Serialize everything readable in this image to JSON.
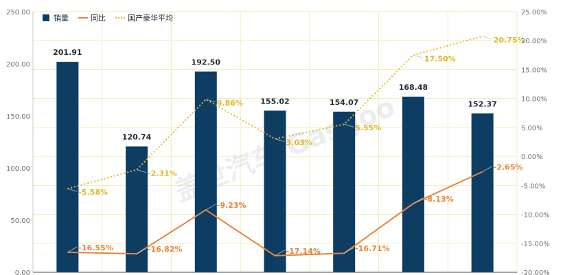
{
  "chart_data": {
    "type": "bar",
    "categories": [
      "",
      "",
      "",
      "",
      "",
      "",
      ""
    ],
    "series": [
      {
        "name": "销量",
        "kind": "bar",
        "axis": "left",
        "color": "#0e3d63",
        "values": [
          201.91,
          120.74,
          192.5,
          155.02,
          154.07,
          168.48,
          152.37
        ],
        "labels": [
          "201.91",
          "120.74",
          "192.50",
          "155.02",
          "154.07",
          "168.48",
          "152.37"
        ]
      },
      {
        "name": "同比",
        "kind": "line",
        "axis": "right",
        "color": "#e8833a",
        "style": "solid",
        "values": [
          -16.55,
          -16.82,
          -9.23,
          -17.14,
          -16.71,
          -8.13,
          -2.65
        ],
        "labels": [
          "-16.55%",
          "-16.82%",
          "-9.23%",
          "-17.14%",
          "-16.71%",
          "-8.13%",
          "-2.65%"
        ]
      },
      {
        "name": "国产豪华平均",
        "kind": "line",
        "axis": "right",
        "color": "#e2b82c",
        "style": "dotted",
        "values": [
          -5.58,
          -2.31,
          9.86,
          3.03,
          5.55,
          17.5,
          20.75
        ],
        "labels": [
          "-5.58%",
          "-2.31%",
          "9.86%",
          "3.03%",
          "5.55%",
          "17.50%",
          "20.75%"
        ]
      }
    ],
    "y_left": {
      "min": 0,
      "max": 250,
      "ticks": [
        "0.00",
        "50.00",
        "100.00",
        "150.00",
        "200.00",
        "250.00"
      ]
    },
    "y_right": {
      "min": -20,
      "max": 25,
      "ticks": [
        "-20.00%",
        "-15.00%",
        "-10.00%",
        "-5.00%",
        "0.00%",
        "5.00%",
        "10.00%",
        "15.00%",
        "20.00%",
        "25.00%"
      ]
    },
    "grid": true,
    "legend_position": "top-left",
    "watermark": "盖世汽车 Gasgoo"
  }
}
